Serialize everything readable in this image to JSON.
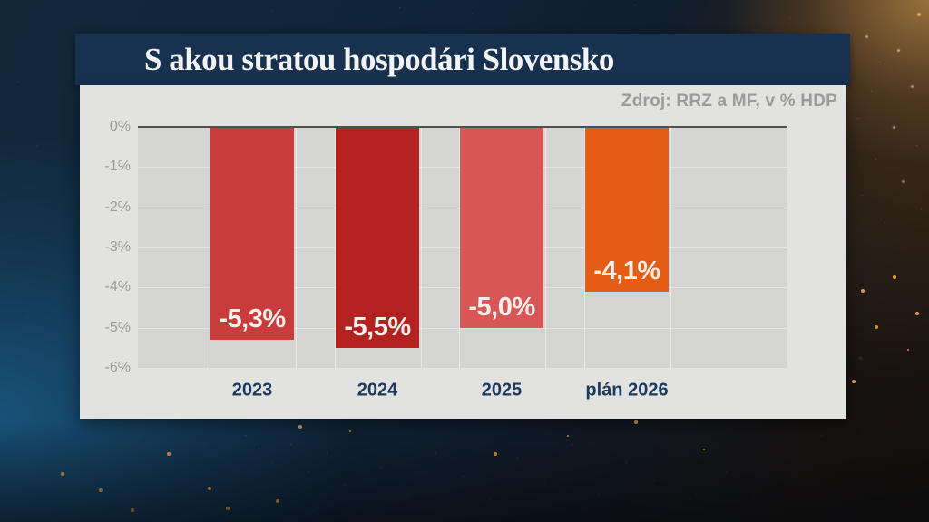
{
  "header": {
    "title": "S akou stratou hospodári Slovensko"
  },
  "source_note": "Zdroj: RRZ a MF, v % HDP",
  "chart_data": {
    "type": "bar",
    "title": "S akou stratou hospodári Slovensko",
    "categories": [
      "2023",
      "2024",
      "2025",
      "plán 2026"
    ],
    "values": [
      -5.3,
      -5.5,
      -5.0,
      -4.1
    ],
    "value_labels": [
      "-5,3%",
      "-5,5%",
      "-5,0%",
      "-4,1%"
    ],
    "bar_colors": [
      "#c83d3c",
      "#b32120",
      "#d85756",
      "#e55c15"
    ],
    "xlabel": "",
    "ylabel": "",
    "ylim": [
      -6,
      0
    ],
    "yticks": [
      "0%",
      "-1%",
      "-2%",
      "-3%",
      "-4%",
      "-5%",
      "-6%"
    ],
    "ytick_values": [
      0,
      -1,
      -2,
      -3,
      -4,
      -5,
      -6
    ],
    "grid": true,
    "legend": false,
    "source": "Zdroj: RRZ a MF, v % HDP"
  },
  "colors": {
    "title_bar": "#17314f",
    "title_text": "#f3f3f3",
    "card_bg": "#e2e2e1",
    "plot_bg": "#d4d4d3",
    "axis_text": "#9b9b9b",
    "x_label": "#1c3a60",
    "value_label": "#f6efe9",
    "zero_line": "#4f4f4f",
    "gridline": "#e4e4e4"
  }
}
